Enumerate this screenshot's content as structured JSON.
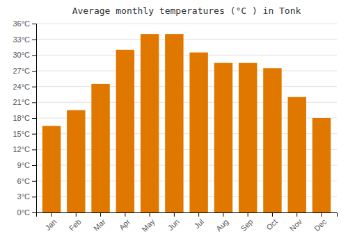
{
  "chart_data": {
    "type": "bar",
    "title": "Average monthly temperatures (°C ) in Tonk",
    "categories": [
      "Jan",
      "Feb",
      "Mar",
      "Apr",
      "May",
      "Jun",
      "Jul",
      "Aug",
      "Sep",
      "Oct",
      "Nov",
      "Dec"
    ],
    "values": [
      16.5,
      19.5,
      24.5,
      31.0,
      34.0,
      34.0,
      30.5,
      28.5,
      28.5,
      27.5,
      22.0,
      18.0
    ],
    "color": "#E07800",
    "ylim": [
      0,
      36
    ],
    "yticks": [
      {
        "value": 0,
        "label": "0°C"
      },
      {
        "value": 3,
        "label": "3°C"
      },
      {
        "value": 6,
        "label": "6°C"
      },
      {
        "value": 9,
        "label": "9°C"
      },
      {
        "value": 12,
        "label": "12°C"
      },
      {
        "value": 15,
        "label": "15°C"
      },
      {
        "value": 18,
        "label": "18°C"
      },
      {
        "value": 21,
        "label": "21°C"
      },
      {
        "value": 24,
        "label": "24°C"
      },
      {
        "value": 27,
        "label": "27°C"
      },
      {
        "value": 30,
        "label": "30°C"
      },
      {
        "value": 33,
        "label": "33°C"
      },
      {
        "value": 36,
        "label": "36°C"
      }
    ],
    "grid": true
  }
}
